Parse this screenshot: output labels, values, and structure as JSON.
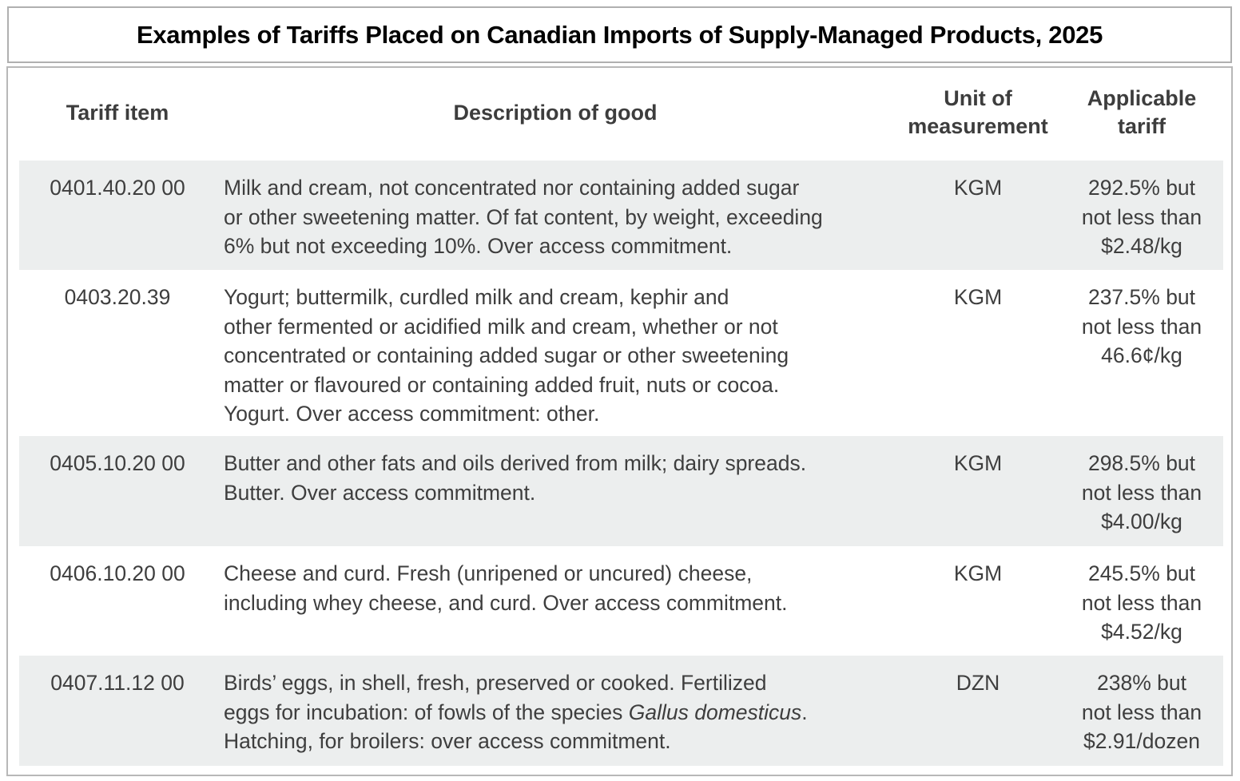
{
  "title": "Examples of Tariffs Placed on Canadian Imports of Supply-Managed Products, 2025",
  "headers": {
    "item": "Tariff item",
    "description": "Description of good",
    "unit_line1": "Unit of",
    "unit_line2": "measurement",
    "tariff_line1": "Applicable",
    "tariff_line2": "tariff"
  },
  "rows": [
    {
      "item": "0401.40.20 00",
      "desc": [
        "Milk and cream, not concentrated nor containing added sugar",
        "or other sweetening matter. Of fat content, by weight, exceeding",
        "6% but not exceeding 10%. Over access commitment."
      ],
      "unit": "KGM",
      "tariff": [
        "292.5% but",
        "not less than",
        "$2.48/kg"
      ]
    },
    {
      "item": "0403.20.39",
      "desc": [
        "Yogurt; buttermilk, curdled milk and cream, kephir and",
        "other fermented or acidified milk and cream, whether or not",
        "concentrated or containing added sugar or other sweetening",
        "matter or flavoured or containing added fruit, nuts or cocoa.",
        "Yogurt. Over access commitment: other."
      ],
      "unit": "KGM",
      "tariff": [
        "237.5% but",
        "not less than",
        "46.6¢/kg"
      ]
    },
    {
      "item": "0405.10.20 00",
      "desc": [
        "Butter and other fats and oils derived from milk; dairy spreads.",
        "Butter. Over access commitment."
      ],
      "unit": "KGM",
      "tariff": [
        "298.5% but",
        "not less than",
        "$4.00/kg"
      ]
    },
    {
      "item": "0406.10.20 00",
      "desc": [
        "Cheese and curd. Fresh (unripened or uncured) cheese,",
        "including whey cheese, and curd. Over access commitment."
      ],
      "unit": "KGM",
      "tariff": [
        "245.5% but",
        "not less than",
        "$4.52/kg"
      ]
    },
    {
      "item": "0407.11.12 00",
      "desc_line1": "Birds’ eggs, in shell, fresh, preserved or cooked. Fertilized",
      "desc_line2_pre": "eggs for incubation: of fowls of the species ",
      "desc_line2_italic": "Gallus domesticus",
      "desc_line2_post": ".",
      "desc_line3": "Hatching, for broilers: over access commitment.",
      "unit": "DZN",
      "tariff": [
        "238% but",
        "not less than",
        "$2.91/dozen"
      ]
    }
  ]
}
